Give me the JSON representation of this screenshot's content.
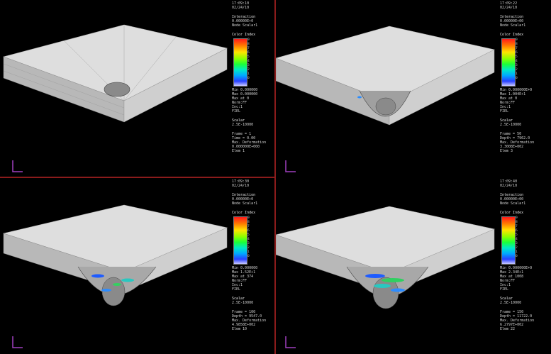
{
  "viewports": [
    {
      "id": "top-left",
      "frame_info": {
        "time": "17:09:10",
        "date": "02/24/10",
        "title": "Interaction",
        "scale": "0.00000E+0",
        "node_scalars": "Node Scalar1",
        "color_index_label": "Color Index",
        "min": "Min 0.000000",
        "max": "Max 0.000000",
        "max_node": "Max at 0",
        "norm_label": "Norm:FF",
        "inc_label": "Inc:1",
        "fiel": "FIEL",
        "scalar": "Scalar",
        "scalar_val": "2.5E-10000",
        "frame": "Frame = 1",
        "time_val": "Time = 0.00",
        "max_def": "Max. Deformation",
        "max_def_val": "0.000000E+000",
        "elem": "Elem 1"
      }
    },
    {
      "id": "top-right",
      "frame_info": {
        "time": "17:09:22",
        "date": "02/24/10",
        "title": "Interaction",
        "scale": "0.00000E+00",
        "node_scalars": "Node Scalar1",
        "color_index_label": "Color Index",
        "min": "Min 0.000000E+0",
        "max": "Max 1.004E+1",
        "max_node": "Max at 0",
        "norm_label": "Norm:FF",
        "inc_label": "Inc:1",
        "fiel": "FIEL",
        "scalar": "Scalar",
        "scalar_val": "2.5E-10000",
        "frame": "Frame = 50",
        "time_val": "Depth = 7962.0",
        "max_def": "Max. Deformation",
        "max_def_val": "3.3008E+002",
        "elem": "Elem 3"
      }
    },
    {
      "id": "bottom-left",
      "frame_info": {
        "time": "17:09:30",
        "date": "02/24/10",
        "title": "Interaction",
        "scale": "0.00000E+0",
        "node_scalars": "Node Scalar1",
        "color_index_label": "Color Index",
        "min": "Min 0.000000",
        "max": "Max 1.52E+1",
        "max_node": "Max at 374",
        "norm_label": "Norm:FF",
        "inc_label": "Inc:1",
        "fiel": "FIEL",
        "scalar": "Scalar",
        "scalar_val": "2.5E-10000",
        "frame": "Frame = 100",
        "time_val": "Depth = 9547.0",
        "max_def": "Max. Deformation",
        "max_def_val": "4.9858E+002",
        "elem": "Elem 10"
      }
    },
    {
      "id": "bottom-right",
      "frame_info": {
        "time": "17:09:40",
        "date": "02/24/10",
        "title": "Interaction",
        "scale": "0.00000E+00",
        "node_scalars": "Node Scalar1",
        "color_index_label": "Color Index",
        "min": "Min 0.000000E+0",
        "max": "Max 2.34E+1",
        "max_node": "Max at 1008",
        "norm_label": "Norm:FF",
        "inc_label": "Inc:1",
        "fiel": "FIEL",
        "scalar": "Scalar",
        "scalar_val": "2.5E-10000",
        "frame": "Frame = 150",
        "time_val": "Depth = 11722.0",
        "max_def": "Max. Deformation",
        "max_def_val": "6.2797E+002",
        "elem": "Elem 22"
      }
    }
  ],
  "color_index_ticks": [
    "9",
    "8",
    "7",
    "6",
    "5",
    "4",
    "3",
    "2",
    "1",
    "0"
  ],
  "axis_label": "Z"
}
